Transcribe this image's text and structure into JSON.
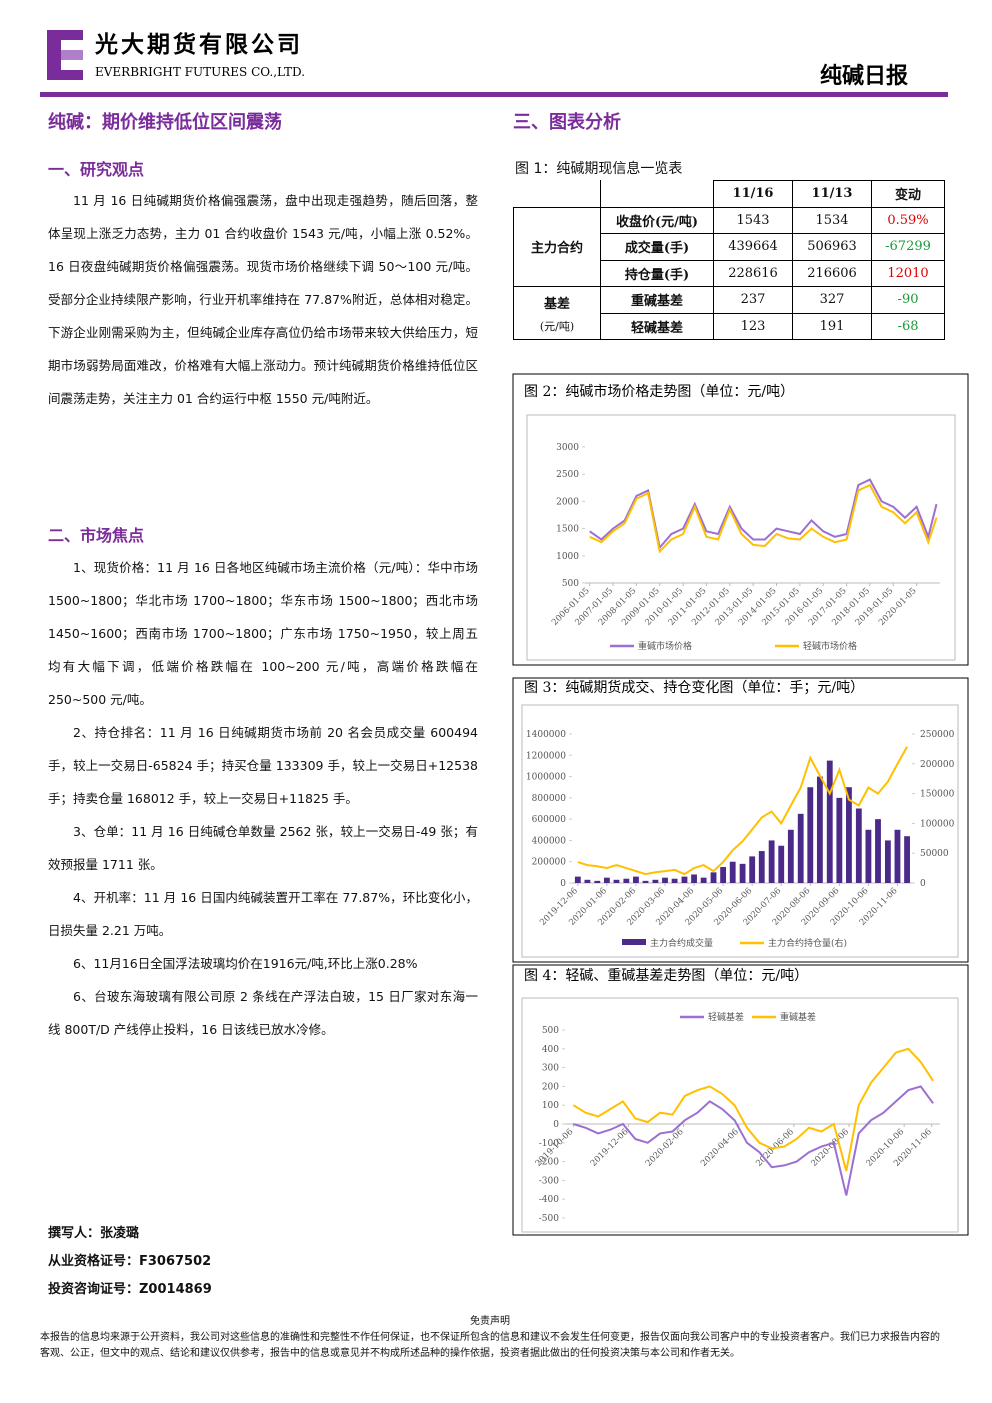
{
  "header": {
    "company": "光大期货有限公司",
    "company_en": "EVERBRIGHT FUTURES CO.,LTD.",
    "report_name": "纯碱日报"
  },
  "left": {
    "title": "纯碱：期价维持低位区间震荡",
    "section1": {
      "heading": "一、研究观点",
      "paragraphs": [
        "11 月 16 日纯碱期货价格偏强震荡，盘中出现走强趋势，随后回落，整体呈现上涨乏力态势，主力 01 合约收盘价 1543 元/吨，小幅上涨 0.52%。16 日夜盘纯碱期货价格偏强震荡。现货市场价格继续下调 50～100 元/吨。受部分企业持续限产影响，行业开机率维持在 77.87%附近，总体相对稳定。下游企业刚需采购为主，但纯碱企业库存高位仍给市场带来较大供给压力，短期市场弱势局面难改，价格难有大幅上涨动力。预计纯碱期货价格维持低位区间震荡走势，关注主力 01 合约运行中枢 1550 元/吨附近。"
      ]
    },
    "section2": {
      "heading": "二、市场焦点",
      "paragraphs": [
        "1、现货价格：11 月 16 日各地区纯碱市场主流价格（元/吨）：华中市场 1500~1800；华北市场 1700~1800；华东市场 1500~1800；西北市场 1450~1600；西南市场 1700~1800；广东市场 1750~1950，较上周五均有大幅下调，低端价格跌幅在 100~200 元/吨，高端价格跌幅在 250~500 元/吨。",
        "2、持仓排名：11 月 16 日纯碱期货市场前 20 名会员成交量 600494 手，较上一交易日-65824 手；持买仓量 133309 手，较上一交易日+12538 手；持卖仓量 168012 手，较上一交易日+11825 手。",
        "3、仓单：11 月 16 日纯碱仓单数量 2562 张，较上一交易日-49 张；有效预报量 1711 张。",
        "4、开机率：11 月 16 日国内纯碱装置开工率在 77.87%，环比变化小，日损失量 2.21 万吨。",
        "6、11月16日全国浮法玻璃均价在1916元/吨,环比上涨0.28%",
        "6、台玻东海玻璃有限公司原 2 条线在产浮法白玻，15 日厂家对东海一线 800T/D 产线停止投料，16 日该线已放水冷修。"
      ]
    },
    "authors": [
      "撰写人：张凌璐",
      "从业资格证号：F3067502",
      "投资咨询证号：Z0014869"
    ]
  },
  "right": {
    "heading": "三、图表分析",
    "table": {
      "caption": "图 1：纯碱期现信息一览表",
      "columns": [
        "11/16",
        "11/13",
        "变动"
      ],
      "groups": [
        {
          "name": [
            "主力合约"
          ],
          "rows": [
            [
              "收盘价(元/吨)",
              "1543",
              "1534",
              "0.59%"
            ],
            [
              "成交量(手)",
              "439664",
              "506963",
              "-67299"
            ],
            [
              "持仓量(手)",
              "228616",
              "216606",
              "12010"
            ]
          ]
        },
        {
          "name": [
            "基差",
            "(元/吨)"
          ],
          "rows": [
            [
              "重碱基差",
              "237",
              "327",
              "-90"
            ],
            [
              "轻碱基差",
              "123",
              "191",
              "-68"
            ]
          ]
        }
      ]
    },
    "figures": [
      {
        "caption": "图 2：纯碱市场价格走势图（单位：元/吨）",
        "chart_data": {
          "type": "line",
          "xlim": [
            2005.8,
            2021.0
          ],
          "ylim": [
            500,
            3000
          ],
          "xticks": [
            {
              "value": 2006,
              "label": "2006-01-05"
            },
            {
              "value": 2007,
              "label": "2007-01-05"
            },
            {
              "value": 2008,
              "label": "2008-01-05"
            },
            {
              "value": 2009,
              "label": "2009-01-05"
            },
            {
              "value": 2010,
              "label": "2010-01-05"
            },
            {
              "value": 2011,
              "label": "2011-01-05"
            },
            {
              "value": 2012,
              "label": "2012-01-05"
            },
            {
              "value": 2013,
              "label": "2013-01-05"
            },
            {
              "value": 2014,
              "label": "2014-01-05"
            },
            {
              "value": 2015,
              "label": "2015-01-05"
            },
            {
              "value": 2016,
              "label": "2016-01-05"
            },
            {
              "value": 2017,
              "label": "2017-01-05"
            },
            {
              "value": 2018,
              "label": "2018-01-05"
            },
            {
              "value": 2019,
              "label": "2019-01-05"
            },
            {
              "value": 2020,
              "label": "2020-01-05"
            }
          ],
          "yticks": [
            500,
            1000,
            1500,
            2000,
            2500,
            3000
          ],
          "x": [
            2006,
            2006.5,
            2007,
            2007.5,
            2008,
            2008.5,
            2009,
            2009.5,
            2010,
            2010.5,
            2011,
            2011.5,
            2012,
            2012.5,
            2013,
            2013.5,
            2014,
            2014.5,
            2015,
            2015.5,
            2016,
            2016.5,
            2017,
            2017.5,
            2018,
            2018.5,
            2019,
            2019.5,
            2020,
            2020.5,
            2020.85
          ],
          "series": [
            {
              "name": "重碱市场价格",
              "color": "#9b6fd3",
              "values": [
                1450,
                1300,
                1500,
                1650,
                2100,
                2200,
                1150,
                1400,
                1500,
                1950,
                1450,
                1400,
                1900,
                1500,
                1300,
                1300,
                1500,
                1450,
                1400,
                1650,
                1450,
                1350,
                1400,
                2300,
                2400,
                2000,
                1900,
                1700,
                1900,
                1350,
                1950
              ]
            },
            {
              "name": "轻碱市场价格",
              "color": "#ffc000",
              "values": [
                1350,
                1250,
                1450,
                1600,
                2050,
                2150,
                1080,
                1300,
                1400,
                1900,
                1350,
                1300,
                1850,
                1400,
                1200,
                1180,
                1400,
                1320,
                1300,
                1500,
                1350,
                1250,
                1300,
                2200,
                2300,
                1900,
                1800,
                1600,
                1800,
                1250,
                1700
              ]
            }
          ]
        }
      },
      {
        "caption": "图 3：纯碱期货成交、持仓变化图（单位：手；元/吨）",
        "chart_data": {
          "type": "bar",
          "xlim": [
            -0.2,
            11.5
          ],
          "ylim": [
            0,
            1400000
          ],
          "y2lim": [
            0,
            250000
          ],
          "xticks": [
            {
              "value": 0,
              "label": "2019-12-06"
            },
            {
              "value": 1,
              "label": "2020-01-06"
            },
            {
              "value": 2,
              "label": "2020-02-06"
            },
            {
              "value": 3,
              "label": "2020-03-06"
            },
            {
              "value": 4,
              "label": "2020-04-06"
            },
            {
              "value": 5,
              "label": "2020-05-06"
            },
            {
              "value": 6,
              "label": "2020-06-06"
            },
            {
              "value": 7,
              "label": "2020-07-06"
            },
            {
              "value": 8,
              "label": "2020-08-06"
            },
            {
              "value": 9,
              "label": "2020-09-06"
            },
            {
              "value": 10,
              "label": "2020-10-06"
            },
            {
              "value": 11,
              "label": "2020-11-06"
            }
          ],
          "yticks": [
            0,
            200000,
            400000,
            600000,
            800000,
            1000000,
            1200000,
            1400000
          ],
          "y2ticks": [
            0,
            50000,
            100000,
            150000,
            200000,
            250000
          ],
          "x": [
            0,
            0.33,
            0.67,
            1,
            1.33,
            1.67,
            2,
            2.33,
            2.67,
            3,
            3.33,
            3.67,
            4,
            4.33,
            4.67,
            5,
            5.33,
            5.67,
            6,
            6.33,
            6.67,
            7,
            7.33,
            7.67,
            8,
            8.33,
            8.67,
            9,
            9.33,
            9.67,
            10,
            10.33,
            10.67,
            11,
            11.33
          ],
          "series": [
            {
              "name": "主力合约成交量",
              "type": "bar",
              "color": "#4b2a8a",
              "values": [
                60000,
                30000,
                20000,
                50000,
                30000,
                40000,
                60000,
                20000,
                30000,
                50000,
                40000,
                60000,
                80000,
                50000,
                100000,
                150000,
                200000,
                180000,
                250000,
                300000,
                400000,
                350000,
                500000,
                650000,
                900000,
                1000000,
                1150000,
                800000,
                900000,
                700000,
                500000,
                600000,
                400000,
                500000,
                439664
              ]
            },
            {
              "name": "主力合约持仓量(右)",
              "type": "line",
              "axis": "y2",
              "color": "#ffc000",
              "values": [
                35000,
                30000,
                28000,
                25000,
                30000,
                25000,
                20000,
                15000,
                18000,
                20000,
                22000,
                15000,
                25000,
                30000,
                20000,
                35000,
                55000,
                70000,
                90000,
                110000,
                120000,
                100000,
                130000,
                160000,
                210000,
                180000,
                150000,
                190000,
                140000,
                130000,
                160000,
                150000,
                170000,
                200000,
                228616
              ]
            }
          ]
        }
      },
      {
        "caption": "图 4：轻碱、重碱基差走势图（单位：元/吨）",
        "chart_data": {
          "type": "line",
          "legend": "top",
          "xlim": [
            -0.3,
            13.3
          ],
          "ylim": [
            -500,
            500
          ],
          "xticks": [
            {
              "value": 0,
              "label": "2019-10-06"
            },
            {
              "value": 2,
              "label": "2019-12-06"
            },
            {
              "value": 4,
              "label": "2020-02-06"
            },
            {
              "value": 6,
              "label": "2020-04-06"
            },
            {
              "value": 8,
              "label": "2020-06-06"
            },
            {
              "value": 10,
              "label": "2020-08-06"
            },
            {
              "value": 12,
              "label": "2020-10-06"
            },
            {
              "value": 13,
              "label": "2020-11-06"
            }
          ],
          "yticks": [
            -500,
            -400,
            -300,
            -200,
            -100,
            0,
            100,
            200,
            300,
            400,
            500
          ],
          "x": [
            0,
            0.45,
            0.9,
            1.35,
            1.8,
            2.25,
            2.7,
            3.15,
            3.6,
            4.05,
            4.5,
            4.95,
            5.4,
            5.85,
            6.3,
            6.75,
            7.2,
            7.65,
            8.1,
            8.55,
            9,
            9.45,
            9.9,
            10.35,
            10.8,
            11.25,
            11.7,
            12.15,
            12.6,
            13.05
          ],
          "series": [
            {
              "name": "轻碱基差",
              "color": "#9b6fd3",
              "values": [
                0,
                -20,
                -50,
                -30,
                0,
                -80,
                -100,
                -50,
                -40,
                20,
                60,
                120,
                80,
                20,
                -100,
                -150,
                -230,
                -220,
                -200,
                -150,
                -120,
                -100,
                -380,
                -50,
                20,
                60,
                120,
                180,
                200,
                110
              ]
            },
            {
              "name": "重碱基差",
              "color": "#ffc000",
              "values": [
                100,
                60,
                40,
                80,
                120,
                30,
                10,
                60,
                50,
                150,
                180,
                200,
                160,
                100,
                -20,
                -100,
                -130,
                -120,
                -80,
                -20,
                -40,
                0,
                -250,
                100,
                220,
                300,
                380,
                400,
                330,
                230
              ]
            }
          ]
        }
      }
    ]
  },
  "footer": {
    "title": "免责声明",
    "text": "本报告的信息均来源于公开资料，我公司对这些信息的准确性和完整性不作任何保证，也不保证所包含的信息和建议不会发生任何变更，报告仅面向我公司客户中的专业投资者客户。我们已力求报告内容的客观、公正，但文中的观点、结论和建议仅供参考，报告中的信息或意见并不构成所述品种的操作依据，投资者据此做出的任何投资决策与本公司和作者无关。"
  }
}
